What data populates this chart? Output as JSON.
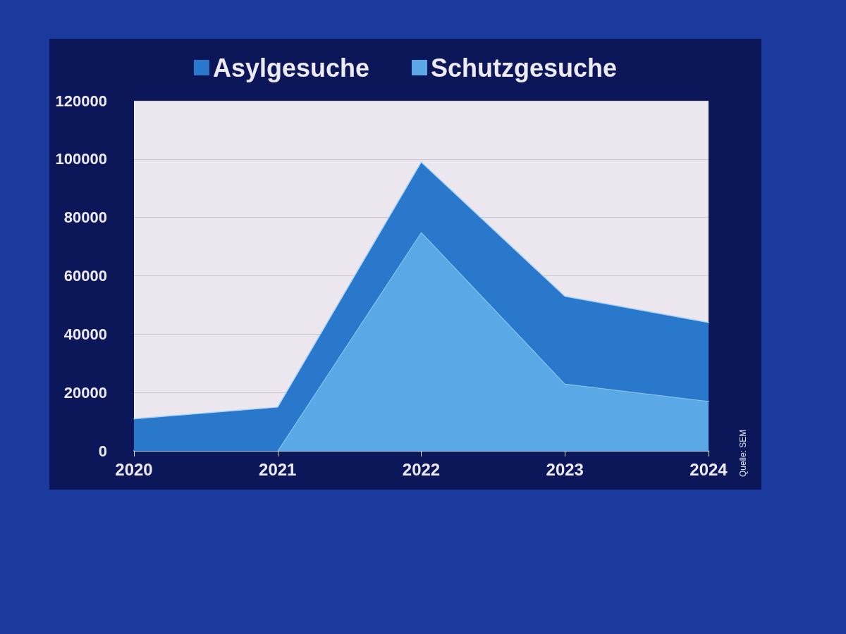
{
  "chart_data": {
    "type": "area",
    "stacked": true,
    "categories": [
      "2020",
      "2021",
      "2022",
      "2023",
      "2024"
    ],
    "series": [
      {
        "name": "Schutzgesuche",
        "color": "#5aa9e6",
        "values": [
          0,
          0,
          75000,
          23000,
          17000
        ]
      },
      {
        "name": "Asylgesuche",
        "color": "#2a78cc",
        "values": [
          11000,
          15000,
          24000,
          30000,
          27000
        ]
      }
    ],
    "ylim": [
      0,
      120000
    ],
    "yticks": [
      0,
      20000,
      40000,
      60000,
      80000,
      100000,
      120000
    ],
    "grid": "y",
    "legend": "top",
    "marker": "none",
    "line_style": "solid",
    "annotations": [
      "Quelle: SEM"
    ]
  }
}
